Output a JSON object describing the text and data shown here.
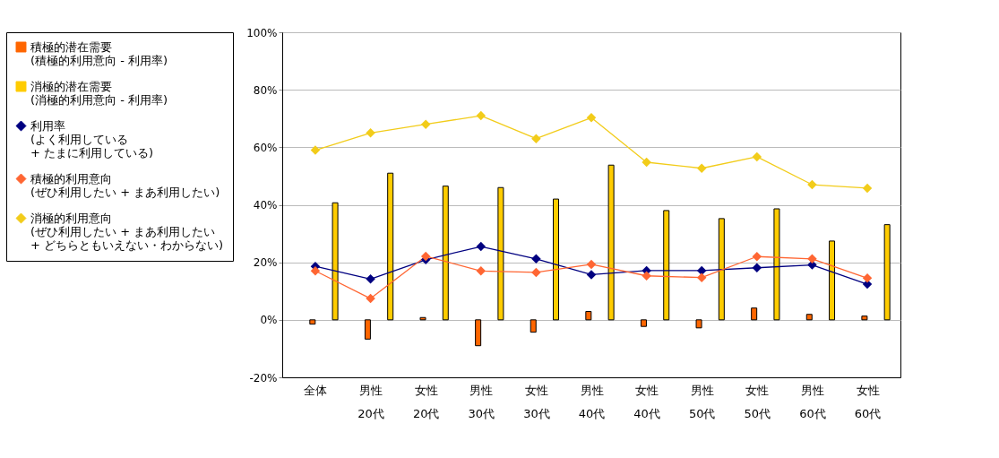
{
  "chart_data": {
    "type": "bar",
    "categories": [
      "全体",
      "男性\n20代",
      "女性\n20代",
      "男性\n30代",
      "女性\n30代",
      "男性\n40代",
      "女性\n40代",
      "男性\n50代",
      "女性\n50代",
      "男性\n60代",
      "女性\n60代"
    ],
    "series": [
      {
        "name": "積極的潜在需要\n(積極的利用意向 - 利用率)",
        "color": "#ff6600",
        "values": [
          -1.5,
          -6.7,
          0.8,
          -9,
          -4.3,
          2.9,
          -2.3,
          -2.8,
          4.1,
          1.9,
          1.3
        ]
      },
      {
        "name": "消極的潜在需要\n(消極的利用意向 - 利用率)",
        "color": "#ffcc00",
        "values": [
          40.7,
          51,
          46.5,
          46,
          42,
          53.8,
          38,
          35.2,
          38.6,
          27.4,
          33.1
        ]
      },
      {
        "name": "利用率\n(よく利用している\n + たまに利用している)",
        "type": "line",
        "color": "#000080",
        "values": [
          18.6,
          14.2,
          20.9,
          25.5,
          21.2,
          15.7,
          17.1,
          17.1,
          18.1,
          19.1,
          12.4
        ]
      },
      {
        "name": "積極的利用意向\n(ぜひ利用したい + まあ利用したい)",
        "type": "line",
        "color": "#ff6633",
        "values": [
          17,
          7.4,
          22.1,
          17,
          16.5,
          19.3,
          15.3,
          14.7,
          22,
          21.2,
          14.5
        ]
      },
      {
        "name": "消極的利用意向\n(ぜひ利用したい + まあ利用したい\n + どちらともいえない・わからない)",
        "type": "line",
        "color": "#f2cc1a",
        "values": [
          59,
          65,
          68,
          71,
          63,
          70.3,
          54.8,
          52.7,
          56.7,
          47,
          45.8
        ]
      }
    ],
    "ylim": [
      -20,
      100
    ],
    "yticks": [
      {
        "value": -20,
        "label": "-20%"
      },
      {
        "value": 0,
        "label": "0%"
      },
      {
        "value": 20,
        "label": "20%"
      },
      {
        "value": 40,
        "label": "40%"
      },
      {
        "value": 60,
        "label": "60%"
      },
      {
        "value": 80,
        "label": "80%"
      },
      {
        "value": 100,
        "label": "100%"
      }
    ],
    "grid": "y",
    "legend": "left",
    "marker": "diamond",
    "line_style": "solid"
  }
}
